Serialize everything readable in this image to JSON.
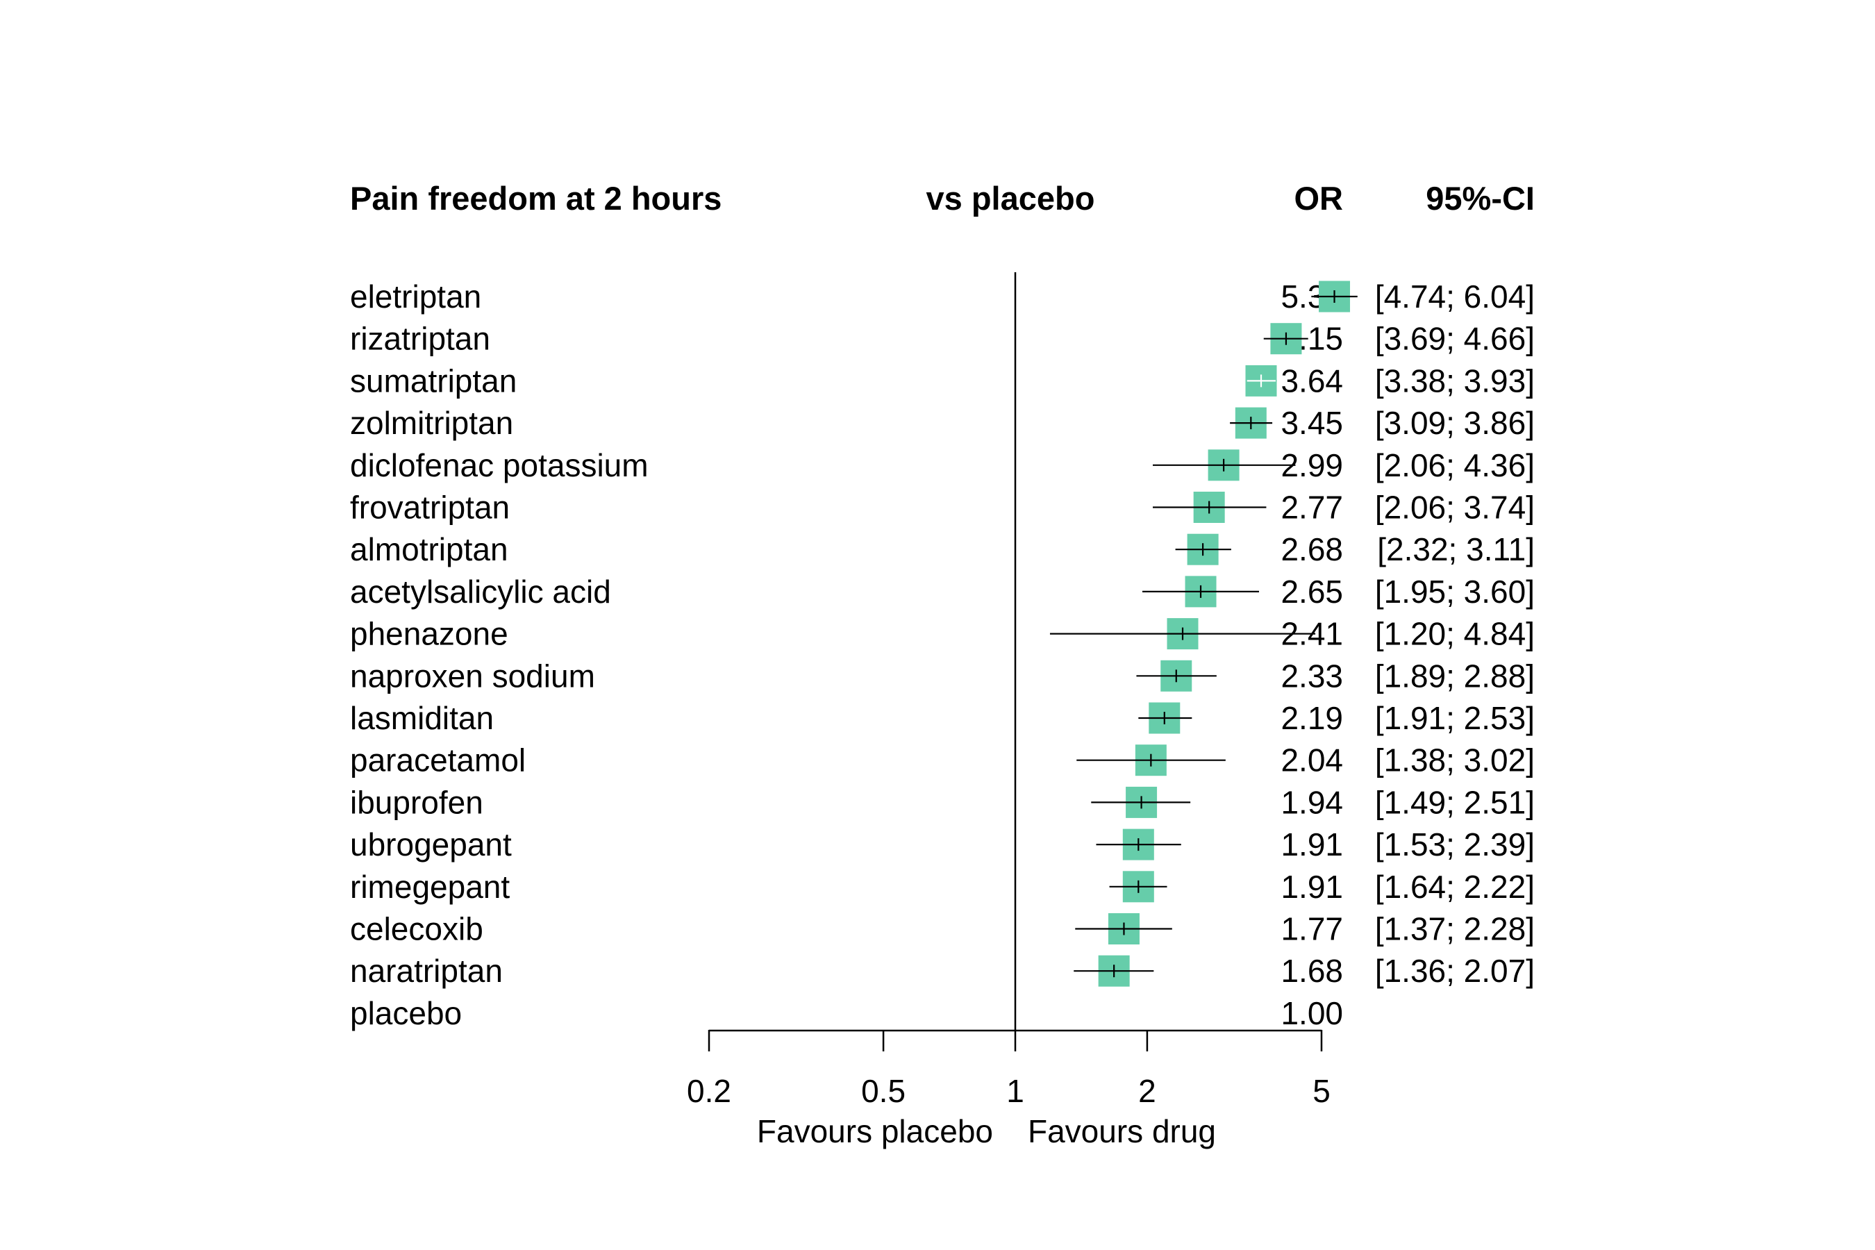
{
  "chart_data": {
    "type": "forest",
    "headers": {
      "treatment": "Pain freedom at 2 hours",
      "comparison": "vs placebo",
      "estimate": "OR",
      "ci": "95%-CI"
    },
    "x_scale": "log",
    "xlim": [
      0.2,
      5
    ],
    "x_ticks": [
      0.2,
      0.5,
      1,
      2,
      5
    ],
    "x_tick_labels": [
      "0.2",
      "0.5",
      "1",
      "2",
      "5"
    ],
    "reference_line": 1,
    "favours_left": "Favours placebo",
    "favours_right": "Favours drug",
    "box_color": "#66cdaa",
    "rows": [
      {
        "name": "eletriptan",
        "or": 5.35,
        "lower": 4.74,
        "upper": 6.04,
        "or_text": "5.35",
        "ci_text": "[4.74; 6.04]"
      },
      {
        "name": "rizatriptan",
        "or": 4.15,
        "lower": 3.69,
        "upper": 4.66,
        "or_text": "4.15",
        "ci_text": "[3.69; 4.66]"
      },
      {
        "name": "sumatriptan",
        "or": 3.64,
        "lower": 3.38,
        "upper": 3.93,
        "or_text": "3.64",
        "ci_text": "[3.38; 3.93]"
      },
      {
        "name": "zolmitriptan",
        "or": 3.45,
        "lower": 3.09,
        "upper": 3.86,
        "or_text": "3.45",
        "ci_text": "[3.09; 3.86]"
      },
      {
        "name": "diclofenac potassium",
        "or": 2.99,
        "lower": 2.06,
        "upper": 4.36,
        "or_text": "2.99",
        "ci_text": "[2.06; 4.36]"
      },
      {
        "name": "frovatriptan",
        "or": 2.77,
        "lower": 2.06,
        "upper": 3.74,
        "or_text": "2.77",
        "ci_text": "[2.06; 3.74]"
      },
      {
        "name": "almotriptan",
        "or": 2.68,
        "lower": 2.32,
        "upper": 3.11,
        "or_text": "2.68",
        "ci_text": "[2.32; 3.11]"
      },
      {
        "name": "acetylsalicylic acid",
        "or": 2.65,
        "lower": 1.95,
        "upper": 3.6,
        "or_text": "2.65",
        "ci_text": "[1.95; 3.60]"
      },
      {
        "name": "phenazone",
        "or": 2.41,
        "lower": 1.2,
        "upper": 4.84,
        "or_text": "2.41",
        "ci_text": "[1.20; 4.84]"
      },
      {
        "name": "naproxen sodium",
        "or": 2.33,
        "lower": 1.89,
        "upper": 2.88,
        "or_text": "2.33",
        "ci_text": "[1.89; 2.88]"
      },
      {
        "name": "lasmiditan",
        "or": 2.19,
        "lower": 1.91,
        "upper": 2.53,
        "or_text": "2.19",
        "ci_text": "[1.91; 2.53]"
      },
      {
        "name": "paracetamol",
        "or": 2.04,
        "lower": 1.38,
        "upper": 3.02,
        "or_text": "2.04",
        "ci_text": "[1.38; 3.02]"
      },
      {
        "name": "ibuprofen",
        "or": 1.94,
        "lower": 1.49,
        "upper": 2.51,
        "or_text": "1.94",
        "ci_text": "[1.49; 2.51]"
      },
      {
        "name": "ubrogepant",
        "or": 1.91,
        "lower": 1.53,
        "upper": 2.39,
        "or_text": "1.91",
        "ci_text": "[1.53; 2.39]"
      },
      {
        "name": "rimegepant",
        "or": 1.91,
        "lower": 1.64,
        "upper": 2.22,
        "or_text": "1.91",
        "ci_text": "[1.64; 2.22]"
      },
      {
        "name": "celecoxib",
        "or": 1.77,
        "lower": 1.37,
        "upper": 2.28,
        "or_text": "1.77",
        "ci_text": "[1.37; 2.28]"
      },
      {
        "name": "naratriptan",
        "or": 1.68,
        "lower": 1.36,
        "upper": 2.07,
        "or_text": "1.68",
        "ci_text": "[1.36; 2.07]"
      },
      {
        "name": "placebo",
        "or": 1.0,
        "lower": null,
        "upper": null,
        "or_text": "1.00",
        "ci_text": ""
      }
    ]
  }
}
